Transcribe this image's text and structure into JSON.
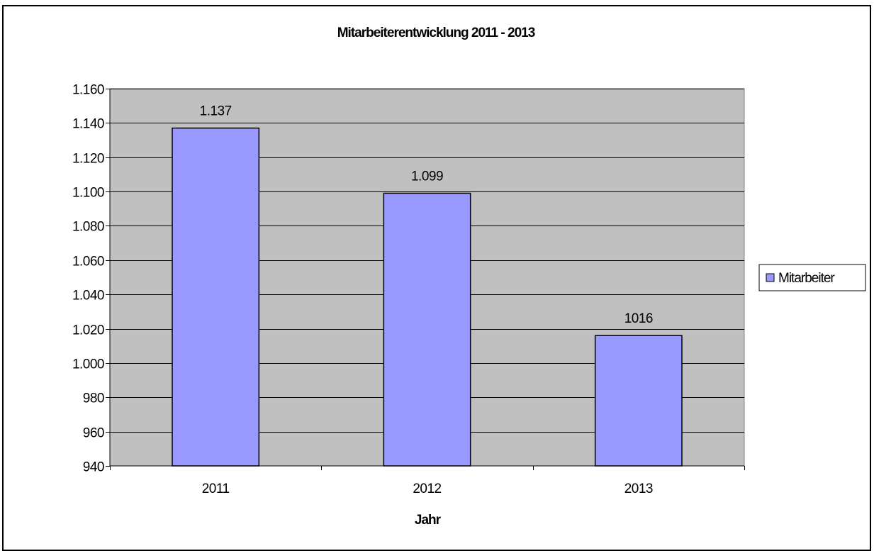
{
  "chart_data": {
    "type": "bar",
    "title": "Mitarbeiterentwicklung 2011 - 2013",
    "xlabel": "Jahr",
    "ylabel": "",
    "categories": [
      "2011",
      "2012",
      "2013"
    ],
    "series": [
      {
        "name": "Mitarbeiter",
        "values": [
          1137,
          1099,
          1016
        ],
        "labels": [
          "1.137",
          "1.099",
          "1016"
        ]
      }
    ],
    "ylim": [
      940,
      1160
    ],
    "yticks": [
      940,
      960,
      980,
      1000,
      1020,
      1040,
      1060,
      1080,
      1100,
      1120,
      1140,
      1160
    ],
    "ytick_labels": [
      "940",
      "960",
      "980",
      "1.000",
      "1.020",
      "1.040",
      "1.060",
      "1.080",
      "1.100",
      "1.120",
      "1.140",
      "1.160"
    ],
    "grid": true,
    "legend": "right",
    "colors": {
      "bar": "#9999ff",
      "plot_bg": "#c0c0c0",
      "grid": "#000000"
    }
  }
}
